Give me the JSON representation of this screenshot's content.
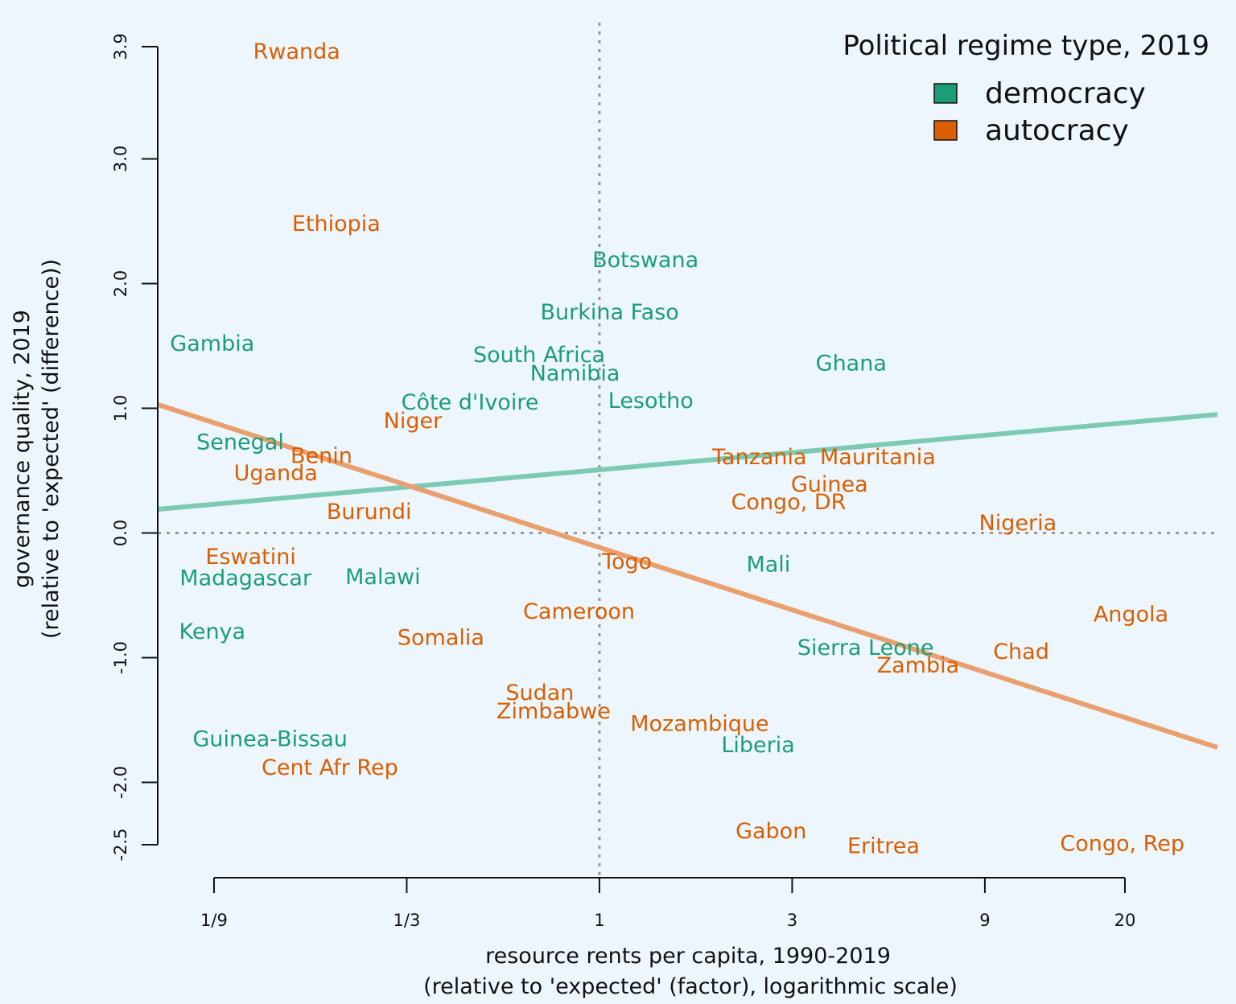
{
  "chart_data": {
    "type": "scatter",
    "title": "",
    "xlabel": [
      "resource rents per capita, 1990-2019",
      "(relative to 'expected' (factor), logarithmic scale)"
    ],
    "ylabel": [
      "governance quality, 2019",
      "(relative to 'expected' (difference))"
    ],
    "x_scale": "log",
    "xlim": [
      0.0806,
      33.9
    ],
    "ylim": [
      -2.5,
      3.9
    ],
    "x_ticks": [
      {
        "value": 0.1111,
        "label": "1/9"
      },
      {
        "value": 0.3333,
        "label": "1/3"
      },
      {
        "value": 1,
        "label": "1"
      },
      {
        "value": 3,
        "label": "3"
      },
      {
        "value": 9,
        "label": "9"
      },
      {
        "value": 20,
        "label": "20"
      }
    ],
    "y_ticks": [
      {
        "value": 3.9,
        "label": "3.9"
      },
      {
        "value": 3.0,
        "label": "3.0"
      },
      {
        "value": 2.0,
        "label": "2.0"
      },
      {
        "value": 1.0,
        "label": "1.0"
      },
      {
        "value": 0.0,
        "label": "0.0"
      },
      {
        "value": -1.0,
        "label": "-1.0"
      },
      {
        "value": -2.0,
        "label": "-2.0"
      },
      {
        "value": -2.5,
        "label": "-2.5"
      }
    ],
    "reference_lines": {
      "x": 1,
      "y": 0,
      "style": "dotted",
      "color": "#999999"
    },
    "grid": false,
    "legend": {
      "title": "Political regime type, 2019",
      "placement": "top-right",
      "entries": [
        {
          "name": "democracy",
          "color": "#1b9e77"
        },
        {
          "name": "autocracy",
          "color": "#d95f02"
        }
      ]
    },
    "fit_lines": [
      {
        "series": "democracy",
        "color": "#7ccab4",
        "x": [
          0.0806,
          33.9
        ],
        "y": [
          0.19,
          0.95
        ]
      },
      {
        "series": "autocracy",
        "color": "#e9a06e",
        "x": [
          0.0806,
          33.9
        ],
        "y": [
          1.03,
          -1.72
        ]
      }
    ],
    "points": [
      {
        "label": "Rwanda",
        "regime": "autocracy",
        "x": 0.178,
        "y": 3.86
      },
      {
        "label": "Ethiopia",
        "regime": "autocracy",
        "x": 0.223,
        "y": 2.48
      },
      {
        "label": "Botswana",
        "regime": "democracy",
        "x": 1.3,
        "y": 2.19
      },
      {
        "label": "Burkina Faso",
        "regime": "democracy",
        "x": 1.06,
        "y": 1.77
      },
      {
        "label": "Gambia",
        "regime": "democracy",
        "x": 0.11,
        "y": 1.52
      },
      {
        "label": "South Africa",
        "regime": "democracy",
        "x": 0.709,
        "y": 1.43
      },
      {
        "label": "Namibia",
        "regime": "democracy",
        "x": 0.87,
        "y": 1.28
      },
      {
        "label": "Ghana",
        "regime": "democracy",
        "x": 4.2,
        "y": 1.36
      },
      {
        "label": "Côte d'Ivoire",
        "regime": "democracy",
        "x": 0.478,
        "y": 1.05
      },
      {
        "label": "Lesotho",
        "regime": "democracy",
        "x": 1.34,
        "y": 1.06
      },
      {
        "label": "Niger",
        "regime": "autocracy",
        "x": 0.345,
        "y": 0.9
      },
      {
        "label": "Senegal",
        "regime": "democracy",
        "x": 0.129,
        "y": 0.73
      },
      {
        "label": "Benin",
        "regime": "autocracy",
        "x": 0.205,
        "y": 0.62
      },
      {
        "label": "Uganda",
        "regime": "autocracy",
        "x": 0.158,
        "y": 0.48
      },
      {
        "label": "Tanzania",
        "regime": "autocracy",
        "x": 2.49,
        "y": 0.61
      },
      {
        "label": "Mauritania",
        "regime": "autocracy",
        "x": 4.89,
        "y": 0.61
      },
      {
        "label": "Guinea",
        "regime": "autocracy",
        "x": 3.71,
        "y": 0.39
      },
      {
        "label": "Congo, DR",
        "regime": "autocracy",
        "x": 2.94,
        "y": 0.25
      },
      {
        "label": "Burundi",
        "regime": "autocracy",
        "x": 0.269,
        "y": 0.17
      },
      {
        "label": "Nigeria",
        "regime": "autocracy",
        "x": 10.86,
        "y": 0.08
      },
      {
        "label": "Eswatini",
        "regime": "autocracy",
        "x": 0.137,
        "y": -0.19
      },
      {
        "label": "Madagascar",
        "regime": "democracy",
        "x": 0.133,
        "y": -0.36
      },
      {
        "label": "Malawi",
        "regime": "democracy",
        "x": 0.291,
        "y": -0.35
      },
      {
        "label": "Togo",
        "regime": "autocracy",
        "x": 1.17,
        "y": -0.23
      },
      {
        "label": "Mali",
        "regime": "democracy",
        "x": 2.62,
        "y": -0.25
      },
      {
        "label": "Cameroon",
        "regime": "autocracy",
        "x": 0.89,
        "y": -0.63
      },
      {
        "label": "Angola",
        "regime": "autocracy",
        "x": 20.7,
        "y": -0.65
      },
      {
        "label": "Kenya",
        "regime": "democracy",
        "x": 0.11,
        "y": -0.79
      },
      {
        "label": "Somalia",
        "regime": "autocracy",
        "x": 0.405,
        "y": -0.84
      },
      {
        "label": "Sierra Leone",
        "regime": "democracy",
        "x": 4.56,
        "y": -0.92
      },
      {
        "label": "Chad",
        "regime": "autocracy",
        "x": 11.07,
        "y": -0.95
      },
      {
        "label": "Zambia",
        "regime": "autocracy",
        "x": 6.15,
        "y": -1.06
      },
      {
        "label": "Sudan",
        "regime": "autocracy",
        "x": 0.712,
        "y": -1.28
      },
      {
        "label": "Zimbabwe",
        "regime": "autocracy",
        "x": 0.77,
        "y": -1.43
      },
      {
        "label": "Mozambique",
        "regime": "autocracy",
        "x": 1.77,
        "y": -1.53
      },
      {
        "label": "Liberia",
        "regime": "democracy",
        "x": 2.47,
        "y": -1.7
      },
      {
        "label": "Guinea-Bissau",
        "regime": "democracy",
        "x": 0.153,
        "y": -1.65
      },
      {
        "label": "Cent Afr Rep",
        "regime": "autocracy",
        "x": 0.215,
        "y": -1.88
      },
      {
        "label": "Gabon",
        "regime": "autocracy",
        "x": 2.66,
        "y": -2.39
      },
      {
        "label": "Eritrea",
        "regime": "autocracy",
        "x": 5.05,
        "y": -2.51
      },
      {
        "label": "Congo, Rep",
        "regime": "autocracy",
        "x": 19.7,
        "y": -2.49
      }
    ]
  }
}
